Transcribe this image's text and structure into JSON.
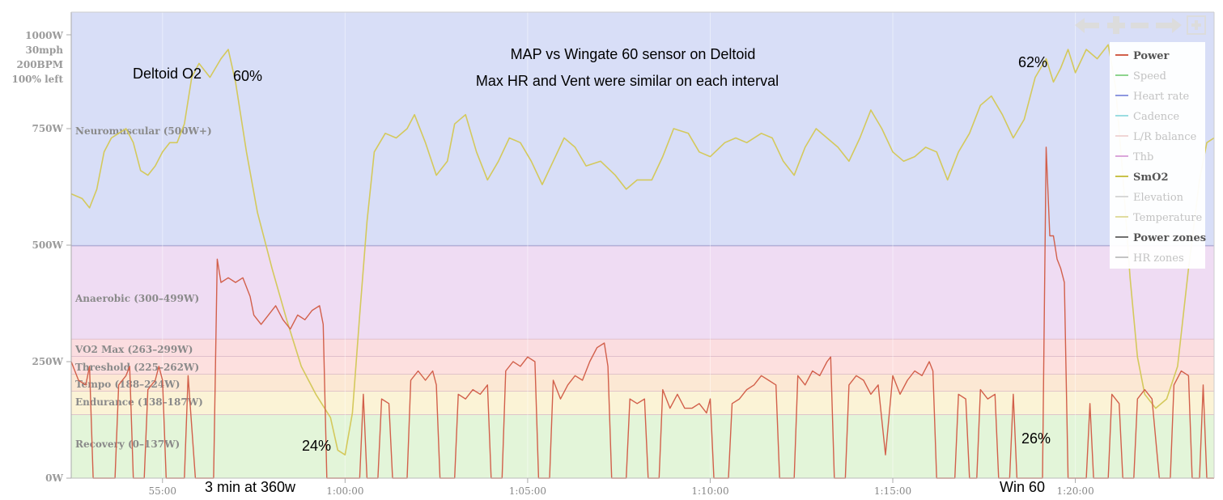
{
  "chart_data": {
    "type": "line",
    "title": "MAP vs Wingate 60 sensor on Deltoid",
    "subtitle": "Max HR and Vent were similar on each interval",
    "y_axis": {
      "ticks": [
        {
          "value": 0,
          "label": "0W"
        },
        {
          "value": 250,
          "label": "250W"
        },
        {
          "value": 500,
          "label": "500W"
        },
        {
          "value": 750,
          "label": "750W"
        }
      ],
      "max_label_lines": [
        "1000W",
        "30mph",
        "200BPM",
        "100% left"
      ],
      "ylim": [
        0,
        1000
      ]
    },
    "x_axis": {
      "ticks": [
        "55:00",
        "1:00:00",
        "1:05:00",
        "1:10:00",
        "1:15:00",
        "1:20:00"
      ],
      "xlim_minutes": [
        52.5,
        83.8
      ]
    },
    "zones": [
      {
        "name": "Recovery (0–137W)",
        "from": 0,
        "to": 137,
        "color": "#e3f5d9"
      },
      {
        "name": "Endurance (138–187W)",
        "from": 137,
        "to": 187,
        "color": "#fbf3d6"
      },
      {
        "name": "Tempo (188–224W)",
        "from": 187,
        "to": 224,
        "color": "#fce8d4"
      },
      {
        "name": "Threshold (225–262W)",
        "from": 224,
        "to": 262,
        "color": "#fde0df"
      },
      {
        "name": "VO2 Max (263–299W)",
        "from": 262,
        "to": 299,
        "color": "#fbdde0"
      },
      {
        "name": "Anaerobic (300–499W)",
        "from": 299,
        "to": 499,
        "color": "#efdcf3"
      },
      {
        "name": "Neuromuscular (500W+)",
        "from": 499,
        "to": 1000,
        "color": "#d8def7"
      }
    ],
    "series": [
      {
        "name": "Power",
        "color": "#d2604b",
        "points": [
          [
            52.5,
            250
          ],
          [
            52.7,
            210
          ],
          [
            52.9,
            200
          ],
          [
            53.0,
            240
          ],
          [
            53.1,
            0
          ],
          [
            53.7,
            0
          ],
          [
            53.8,
            200
          ],
          [
            54.0,
            220
          ],
          [
            54.1,
            240
          ],
          [
            54.2,
            0
          ],
          [
            54.5,
            0
          ],
          [
            54.6,
            190
          ],
          [
            54.8,
            210
          ],
          [
            54.9,
            240
          ],
          [
            55.0,
            210
          ],
          [
            55.1,
            0
          ],
          [
            55.6,
            0
          ],
          [
            55.7,
            220
          ],
          [
            55.9,
            0
          ],
          [
            56.4,
            0
          ],
          [
            56.5,
            470
          ],
          [
            56.6,
            420
          ],
          [
            56.8,
            430
          ],
          [
            57.0,
            420
          ],
          [
            57.2,
            430
          ],
          [
            57.4,
            390
          ],
          [
            57.5,
            350
          ],
          [
            57.7,
            330
          ],
          [
            57.9,
            350
          ],
          [
            58.1,
            370
          ],
          [
            58.3,
            340
          ],
          [
            58.5,
            320
          ],
          [
            58.7,
            350
          ],
          [
            58.9,
            340
          ],
          [
            59.1,
            360
          ],
          [
            59.3,
            370
          ],
          [
            59.4,
            330
          ],
          [
            59.5,
            0
          ],
          [
            60.4,
            0
          ],
          [
            60.5,
            180
          ],
          [
            60.6,
            0
          ],
          [
            60.9,
            0
          ],
          [
            61.0,
            170
          ],
          [
            61.2,
            160
          ],
          [
            61.3,
            0
          ],
          [
            61.7,
            0
          ],
          [
            61.8,
            210
          ],
          [
            62.0,
            230
          ],
          [
            62.2,
            210
          ],
          [
            62.4,
            230
          ],
          [
            62.5,
            200
          ],
          [
            62.6,
            0
          ],
          [
            63.0,
            0
          ],
          [
            63.1,
            180
          ],
          [
            63.3,
            170
          ],
          [
            63.5,
            190
          ],
          [
            63.7,
            180
          ],
          [
            63.9,
            200
          ],
          [
            64.0,
            0
          ],
          [
            64.3,
            0
          ],
          [
            64.4,
            230
          ],
          [
            64.6,
            250
          ],
          [
            64.8,
            240
          ],
          [
            65.0,
            260
          ],
          [
            65.2,
            250
          ],
          [
            65.3,
            0
          ],
          [
            65.6,
            0
          ],
          [
            65.7,
            210
          ],
          [
            65.9,
            170
          ],
          [
            66.1,
            200
          ],
          [
            66.3,
            220
          ],
          [
            66.5,
            210
          ],
          [
            66.7,
            250
          ],
          [
            66.9,
            280
          ],
          [
            67.1,
            290
          ],
          [
            67.2,
            240
          ],
          [
            67.3,
            0
          ],
          [
            67.7,
            0
          ],
          [
            67.8,
            170
          ],
          [
            68.0,
            160
          ],
          [
            68.2,
            170
          ],
          [
            68.3,
            0
          ],
          [
            68.6,
            0
          ],
          [
            68.7,
            190
          ],
          [
            68.9,
            150
          ],
          [
            69.1,
            180
          ],
          [
            69.3,
            150
          ],
          [
            69.5,
            150
          ],
          [
            69.7,
            160
          ],
          [
            69.9,
            140
          ],
          [
            70.0,
            170
          ],
          [
            70.1,
            0
          ],
          [
            70.5,
            0
          ],
          [
            70.6,
            160
          ],
          [
            70.8,
            170
          ],
          [
            71.0,
            190
          ],
          [
            71.2,
            200
          ],
          [
            71.4,
            220
          ],
          [
            71.6,
            210
          ],
          [
            71.8,
            200
          ],
          [
            71.9,
            0
          ],
          [
            72.3,
            0
          ],
          [
            72.4,
            220
          ],
          [
            72.6,
            200
          ],
          [
            72.8,
            230
          ],
          [
            73.0,
            220
          ],
          [
            73.2,
            250
          ],
          [
            73.3,
            260
          ],
          [
            73.4,
            0
          ],
          [
            73.7,
            0
          ],
          [
            73.8,
            200
          ],
          [
            74.0,
            220
          ],
          [
            74.2,
            210
          ],
          [
            74.4,
            180
          ],
          [
            74.6,
            200
          ],
          [
            74.8,
            50
          ],
          [
            75.0,
            220
          ],
          [
            75.2,
            180
          ],
          [
            75.4,
            210
          ],
          [
            75.6,
            230
          ],
          [
            75.8,
            220
          ],
          [
            76.0,
            250
          ],
          [
            76.1,
            230
          ],
          [
            76.2,
            0
          ],
          [
            76.7,
            0
          ],
          [
            76.8,
            180
          ],
          [
            77.0,
            170
          ],
          [
            77.1,
            0
          ],
          [
            77.3,
            0
          ],
          [
            77.4,
            190
          ],
          [
            77.6,
            170
          ],
          [
            77.8,
            180
          ],
          [
            77.9,
            0
          ],
          [
            78.2,
            0
          ],
          [
            78.3,
            180
          ],
          [
            78.4,
            0
          ],
          [
            79.1,
            0
          ],
          [
            79.2,
            710
          ],
          [
            79.3,
            520
          ],
          [
            79.4,
            520
          ],
          [
            79.5,
            470
          ],
          [
            79.6,
            450
          ],
          [
            79.7,
            420
          ],
          [
            79.8,
            0
          ],
          [
            80.3,
            0
          ],
          [
            80.4,
            160
          ],
          [
            80.5,
            0
          ],
          [
            80.9,
            0
          ],
          [
            81.0,
            180
          ],
          [
            81.2,
            160
          ],
          [
            81.3,
            0
          ],
          [
            81.6,
            0
          ],
          [
            81.7,
            170
          ],
          [
            81.9,
            190
          ],
          [
            82.1,
            170
          ],
          [
            82.3,
            0
          ],
          [
            82.6,
            0
          ],
          [
            82.7,
            200
          ],
          [
            82.9,
            230
          ],
          [
            83.1,
            220
          ],
          [
            83.2,
            0
          ],
          [
            83.4,
            0
          ],
          [
            83.5,
            200
          ],
          [
            83.6,
            0
          ],
          [
            83.8,
            0
          ]
        ]
      },
      {
        "name": "SmO2",
        "color": "#d4c95c",
        "points": [
          [
            52.5,
            61
          ],
          [
            52.8,
            60
          ],
          [
            53.0,
            58
          ],
          [
            53.2,
            62
          ],
          [
            53.4,
            70
          ],
          [
            53.6,
            73
          ],
          [
            53.8,
            74
          ],
          [
            54.0,
            75
          ],
          [
            54.2,
            72
          ],
          [
            54.4,
            66
          ],
          [
            54.6,
            65
          ],
          [
            54.8,
            67
          ],
          [
            55.0,
            70
          ],
          [
            55.2,
            72
          ],
          [
            55.4,
            72
          ],
          [
            55.6,
            76
          ],
          [
            55.8,
            86
          ],
          [
            56.0,
            89
          ],
          [
            56.3,
            86
          ],
          [
            56.6,
            90
          ],
          [
            56.8,
            92
          ],
          [
            57.0,
            85
          ],
          [
            57.3,
            70
          ],
          [
            57.6,
            57
          ],
          [
            58.0,
            45
          ],
          [
            58.4,
            34
          ],
          [
            58.8,
            24
          ],
          [
            59.2,
            18
          ],
          [
            59.6,
            13
          ],
          [
            59.8,
            6
          ],
          [
            60.0,
            5
          ],
          [
            60.2,
            14
          ],
          [
            60.4,
            35
          ],
          [
            60.6,
            55
          ],
          [
            60.8,
            70
          ],
          [
            61.1,
            74
          ],
          [
            61.4,
            73
          ],
          [
            61.7,
            75
          ],
          [
            61.9,
            78
          ],
          [
            62.2,
            72
          ],
          [
            62.5,
            65
          ],
          [
            62.8,
            68
          ],
          [
            63.0,
            76
          ],
          [
            63.3,
            78
          ],
          [
            63.6,
            70
          ],
          [
            63.9,
            64
          ],
          [
            64.2,
            68
          ],
          [
            64.5,
            73
          ],
          [
            64.8,
            72
          ],
          [
            65.1,
            68
          ],
          [
            65.4,
            63
          ],
          [
            65.7,
            68
          ],
          [
            66.0,
            73
          ],
          [
            66.3,
            71
          ],
          [
            66.6,
            67
          ],
          [
            67.0,
            68
          ],
          [
            67.4,
            65
          ],
          [
            67.7,
            62
          ],
          [
            68.0,
            64
          ],
          [
            68.4,
            64
          ],
          [
            68.7,
            69
          ],
          [
            69.0,
            75
          ],
          [
            69.4,
            74
          ],
          [
            69.7,
            70
          ],
          [
            70.0,
            69
          ],
          [
            70.4,
            72
          ],
          [
            70.7,
            73
          ],
          [
            71.0,
            72
          ],
          [
            71.4,
            74
          ],
          [
            71.7,
            73
          ],
          [
            72.0,
            68
          ],
          [
            72.3,
            65
          ],
          [
            72.6,
            71
          ],
          [
            72.9,
            75
          ],
          [
            73.2,
            73
          ],
          [
            73.5,
            71
          ],
          [
            73.8,
            68
          ],
          [
            74.1,
            73
          ],
          [
            74.4,
            79
          ],
          [
            74.7,
            75
          ],
          [
            75.0,
            70
          ],
          [
            75.3,
            68
          ],
          [
            75.6,
            69
          ],
          [
            75.9,
            71
          ],
          [
            76.2,
            70
          ],
          [
            76.5,
            64
          ],
          [
            76.8,
            70
          ],
          [
            77.1,
            74
          ],
          [
            77.4,
            80
          ],
          [
            77.7,
            82
          ],
          [
            78.0,
            78
          ],
          [
            78.3,
            73
          ],
          [
            78.6,
            77
          ],
          [
            78.9,
            86
          ],
          [
            79.2,
            90
          ],
          [
            79.4,
            85
          ],
          [
            79.6,
            88
          ],
          [
            79.8,
            92
          ],
          [
            80.0,
            87
          ],
          [
            80.3,
            92
          ],
          [
            80.6,
            90
          ],
          [
            80.9,
            93
          ],
          [
            81.1,
            84
          ],
          [
            81.3,
            65
          ],
          [
            81.5,
            43
          ],
          [
            81.7,
            26
          ],
          [
            81.9,
            18
          ],
          [
            82.2,
            15
          ],
          [
            82.5,
            17
          ],
          [
            82.8,
            24
          ],
          [
            83.1,
            45
          ],
          [
            83.4,
            64
          ],
          [
            83.6,
            72
          ],
          [
            83.8,
            73
          ]
        ]
      }
    ],
    "legend": {
      "placement": "top-right",
      "items": [
        {
          "label": "Power",
          "color": "#d2604b",
          "active": true
        },
        {
          "label": "Speed",
          "color": "#8ed48e",
          "active": false
        },
        {
          "label": "Heart rate",
          "color": "#8e98e0",
          "active": false
        },
        {
          "label": "Cadence",
          "color": "#9bdde2",
          "active": false
        },
        {
          "label": "L/R balance",
          "color": "#f0d6d6",
          "active": false
        },
        {
          "label": "Thb",
          "color": "#dba6db",
          "active": false
        },
        {
          "label": "SmO2",
          "color": "#c9c24a",
          "active": true
        },
        {
          "label": "Elevation",
          "color": "#d8d8d8",
          "active": false
        },
        {
          "label": "Temperature",
          "color": "#e0dca0",
          "active": false
        },
        {
          "label": "Power zones",
          "color": "#707070",
          "active": true
        },
        {
          "label": "HR zones",
          "color": "#c4c4c4",
          "active": false
        }
      ]
    },
    "annotations": [
      {
        "text": "Deltoid O2"
      },
      {
        "text": "60%"
      },
      {
        "text": "24%"
      },
      {
        "text": "62%"
      },
      {
        "text": "26%"
      },
      {
        "text": "3 min at 360w"
      },
      {
        "text": "Win 60"
      }
    ],
    "grid": true
  },
  "toolbar": {
    "icons": [
      "arrow-left-icon",
      "plus-icon",
      "minus-icon",
      "arrow-right-icon",
      "zoom-fit-icon"
    ]
  }
}
